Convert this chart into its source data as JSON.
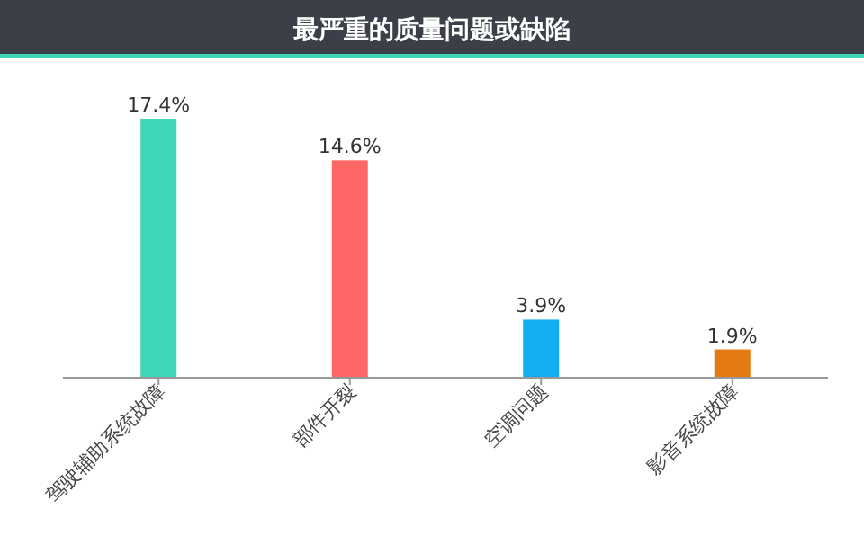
{
  "chart_data": {
    "type": "bar",
    "title": "最严重的质量问题或缺陷",
    "categories": [
      "驾驶辅助系统故障",
      "部件开裂",
      "空调问题",
      "影音系统故障"
    ],
    "values": [
      17.4,
      14.6,
      3.9,
      1.9
    ],
    "colors": [
      "#3dd6b8",
      "#ff6666",
      "#14aef0",
      "#e47b12"
    ],
    "value_labels": [
      "17.4%",
      "14.6%",
      "3.9%",
      "1.9%"
    ],
    "grid": false
  }
}
